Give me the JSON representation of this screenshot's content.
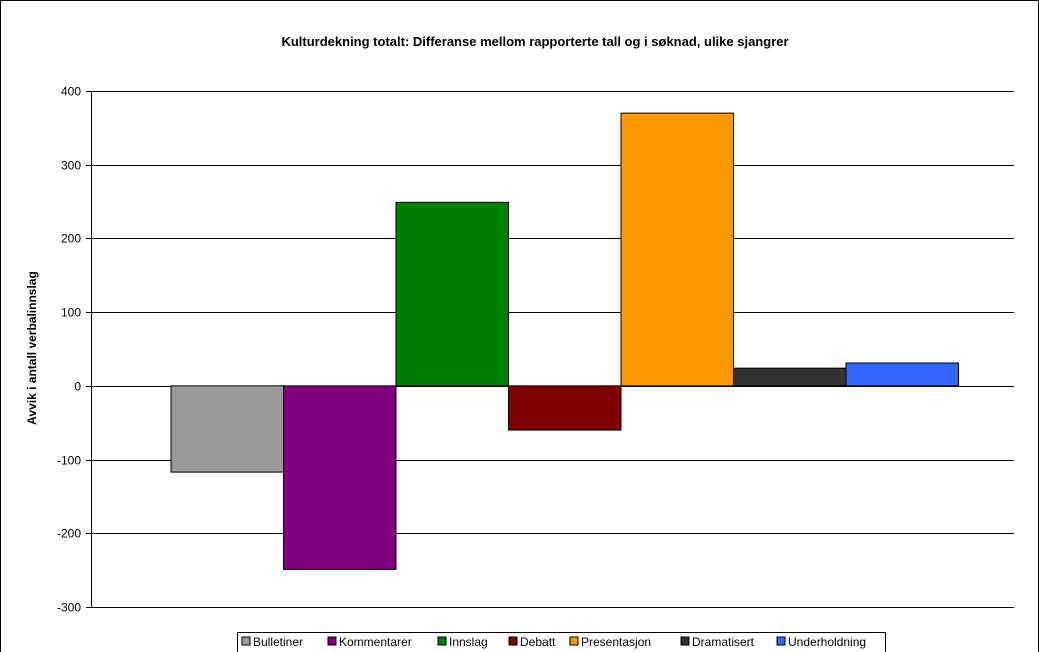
{
  "chart_data": {
    "type": "bar",
    "title": "Kulturdekning totalt: Differanse mellom rapporterte tall og i søknad, ulike sjangrer",
    "xlabel": "",
    "ylabel": "Avvik i antall verbalinnslag",
    "ylim": [
      -300,
      400
    ],
    "yticks": [
      400,
      300,
      200,
      100,
      0,
      -100,
      -200,
      -300
    ],
    "grid": true,
    "legend_position": "bottom",
    "series": [
      {
        "name": "Bulletiner",
        "value": -117,
        "color": "#999999"
      },
      {
        "name": "Kommentarer",
        "value": -249,
        "color": "#800080"
      },
      {
        "name": "Innslag",
        "value": 249,
        "color": "#008000"
      },
      {
        "name": "Debatt",
        "value": -60,
        "color": "#800000"
      },
      {
        "name": "Presentasjon",
        "value": 370,
        "color": "#FF9900"
      },
      {
        "name": "Dramatisert",
        "value": 24,
        "color": "#333333"
      },
      {
        "name": "Underholdning",
        "value": 31,
        "color": "#3366FF"
      }
    ]
  }
}
